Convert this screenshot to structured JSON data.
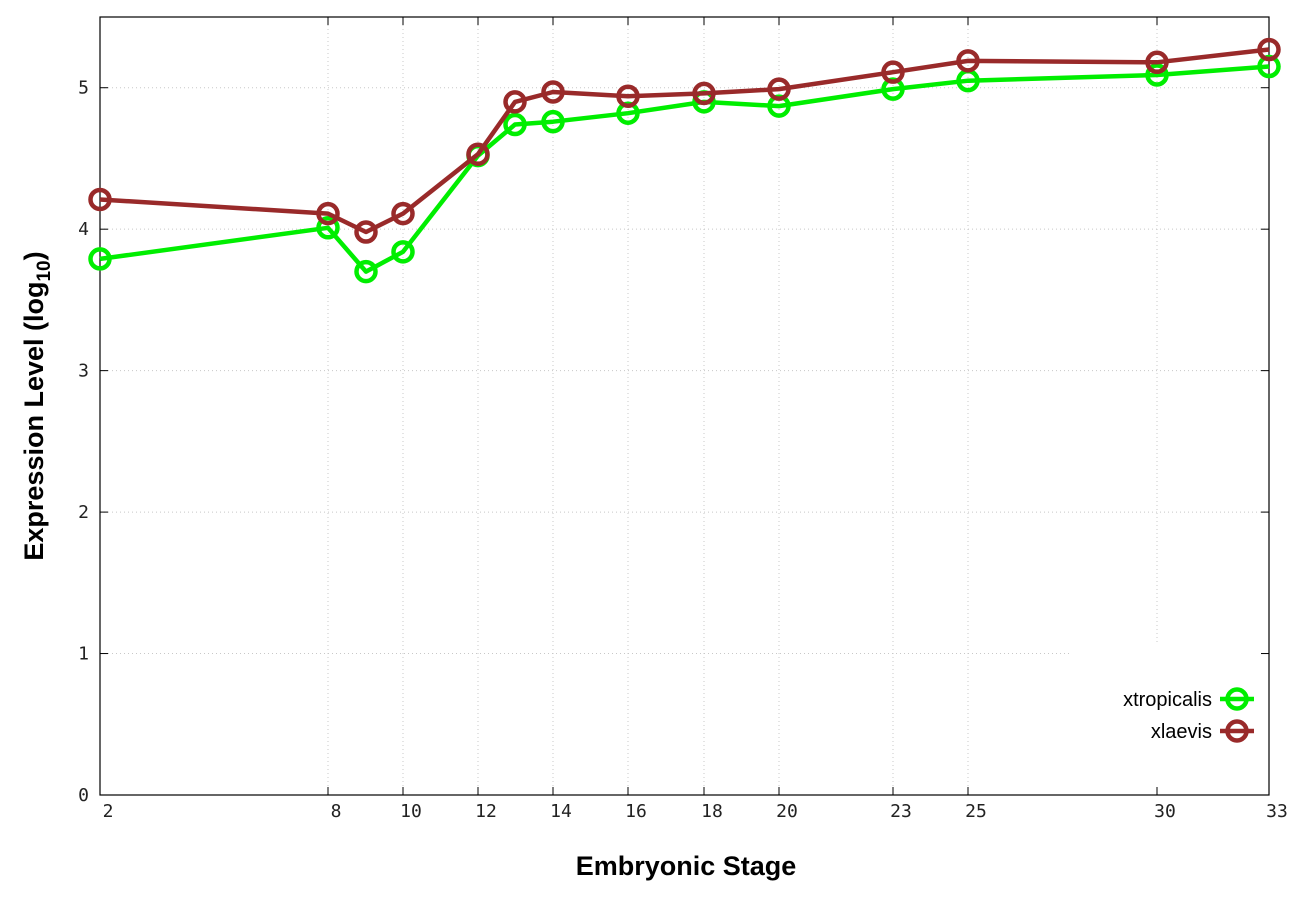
{
  "chart_data": {
    "type": "line",
    "xlabel": "Embryonic Stage",
    "ylabel_main": "Expression Level (log",
    "ylabel_sub": "10",
    "ylabel_close": ")",
    "x_ticks": [
      "2",
      "8",
      "10",
      "12",
      "14",
      "16",
      "18",
      "20",
      "23",
      "25",
      "30",
      "33"
    ],
    "y_ticks": [
      "0",
      "1",
      "2",
      "3",
      "4",
      "5"
    ],
    "ylim": [
      0,
      5.5
    ],
    "grid": true,
    "legend_position": "bottom-right",
    "series": [
      {
        "name": "xtropicalis",
        "color": "#00ee00",
        "points": [
          [
            "2",
            3.79
          ],
          [
            "8",
            4.01
          ],
          [
            "9",
            3.7
          ],
          [
            "10",
            3.84
          ],
          [
            "12",
            4.52
          ],
          [
            "13",
            4.74
          ],
          [
            "14",
            4.76
          ],
          [
            "16",
            4.82
          ],
          [
            "18",
            4.9
          ],
          [
            "20",
            4.87
          ],
          [
            "23",
            4.99
          ],
          [
            "25",
            5.05
          ],
          [
            "30",
            5.09
          ],
          [
            "33",
            5.15
          ]
        ]
      },
      {
        "name": "xlaevis",
        "color": "#992a2a",
        "points": [
          [
            "2",
            4.21
          ],
          [
            "8",
            4.11
          ],
          [
            "9",
            3.98
          ],
          [
            "10",
            4.11
          ],
          [
            "12",
            4.53
          ],
          [
            "13",
            4.9
          ],
          [
            "14",
            4.97
          ],
          [
            "16",
            4.94
          ],
          [
            "18",
            4.96
          ],
          [
            "20",
            4.99
          ],
          [
            "23",
            5.11
          ],
          [
            "25",
            5.19
          ],
          [
            "30",
            5.18
          ],
          [
            "33",
            5.27
          ]
        ]
      }
    ]
  }
}
